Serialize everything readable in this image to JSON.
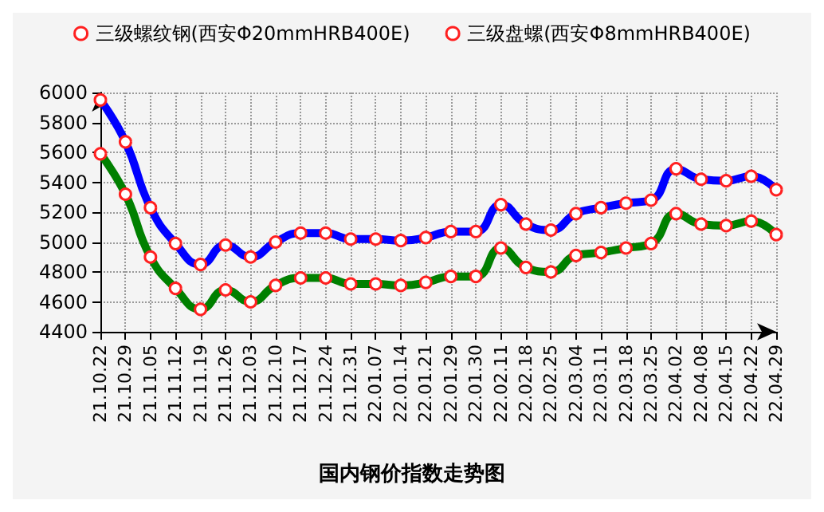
{
  "chart_data": {
    "type": "line",
    "title": "国内钢价指数走势图",
    "categories": [
      "21.10.22",
      "21.10.29",
      "21.11.05",
      "21.11.12",
      "21.11.19",
      "21.11.26",
      "21.12.03",
      "21.12.10",
      "21.12.17",
      "21.12.24",
      "21.12.31",
      "22.01.07",
      "22.01.14",
      "22.01.21",
      "22.01.29",
      "22.01.30",
      "22.02.11",
      "22.02.18",
      "22.02.25",
      "22.03.04",
      "22.03.11",
      "22.03.18",
      "22.03.25",
      "22.04.02",
      "22.04.08",
      "22.04.15",
      "22.04.22",
      "22.04.29"
    ],
    "series": [
      {
        "name": "三级螺纹钢(西安Φ20mmHRB400E)",
        "color": "#008000",
        "values": [
          5590,
          5320,
          4900,
          4690,
          4550,
          4680,
          4600,
          4710,
          4760,
          4760,
          4720,
          4720,
          4710,
          4730,
          4770,
          4770,
          4960,
          4830,
          4800,
          4910,
          4930,
          4960,
          4990,
          5190,
          5120,
          5110,
          5140,
          5050
        ]
      },
      {
        "name": "三级盘螺(西安Φ8mmHRB400E)",
        "color": "#0000ff",
        "values": [
          5950,
          5670,
          5230,
          4990,
          4850,
          4980,
          4900,
          5000,
          5060,
          5060,
          5020,
          5020,
          5010,
          5030,
          5070,
          5070,
          5250,
          5120,
          5080,
          5190,
          5230,
          5260,
          5280,
          5490,
          5420,
          5410,
          5440,
          5350
        ]
      }
    ],
    "ylim": [
      4400,
      6000
    ],
    "yticks": [
      4400,
      4600,
      4800,
      5000,
      5200,
      5400,
      5600,
      5800,
      6000
    ],
    "grid": true,
    "legend": "top",
    "marker": "circle",
    "line_style": "solid"
  }
}
